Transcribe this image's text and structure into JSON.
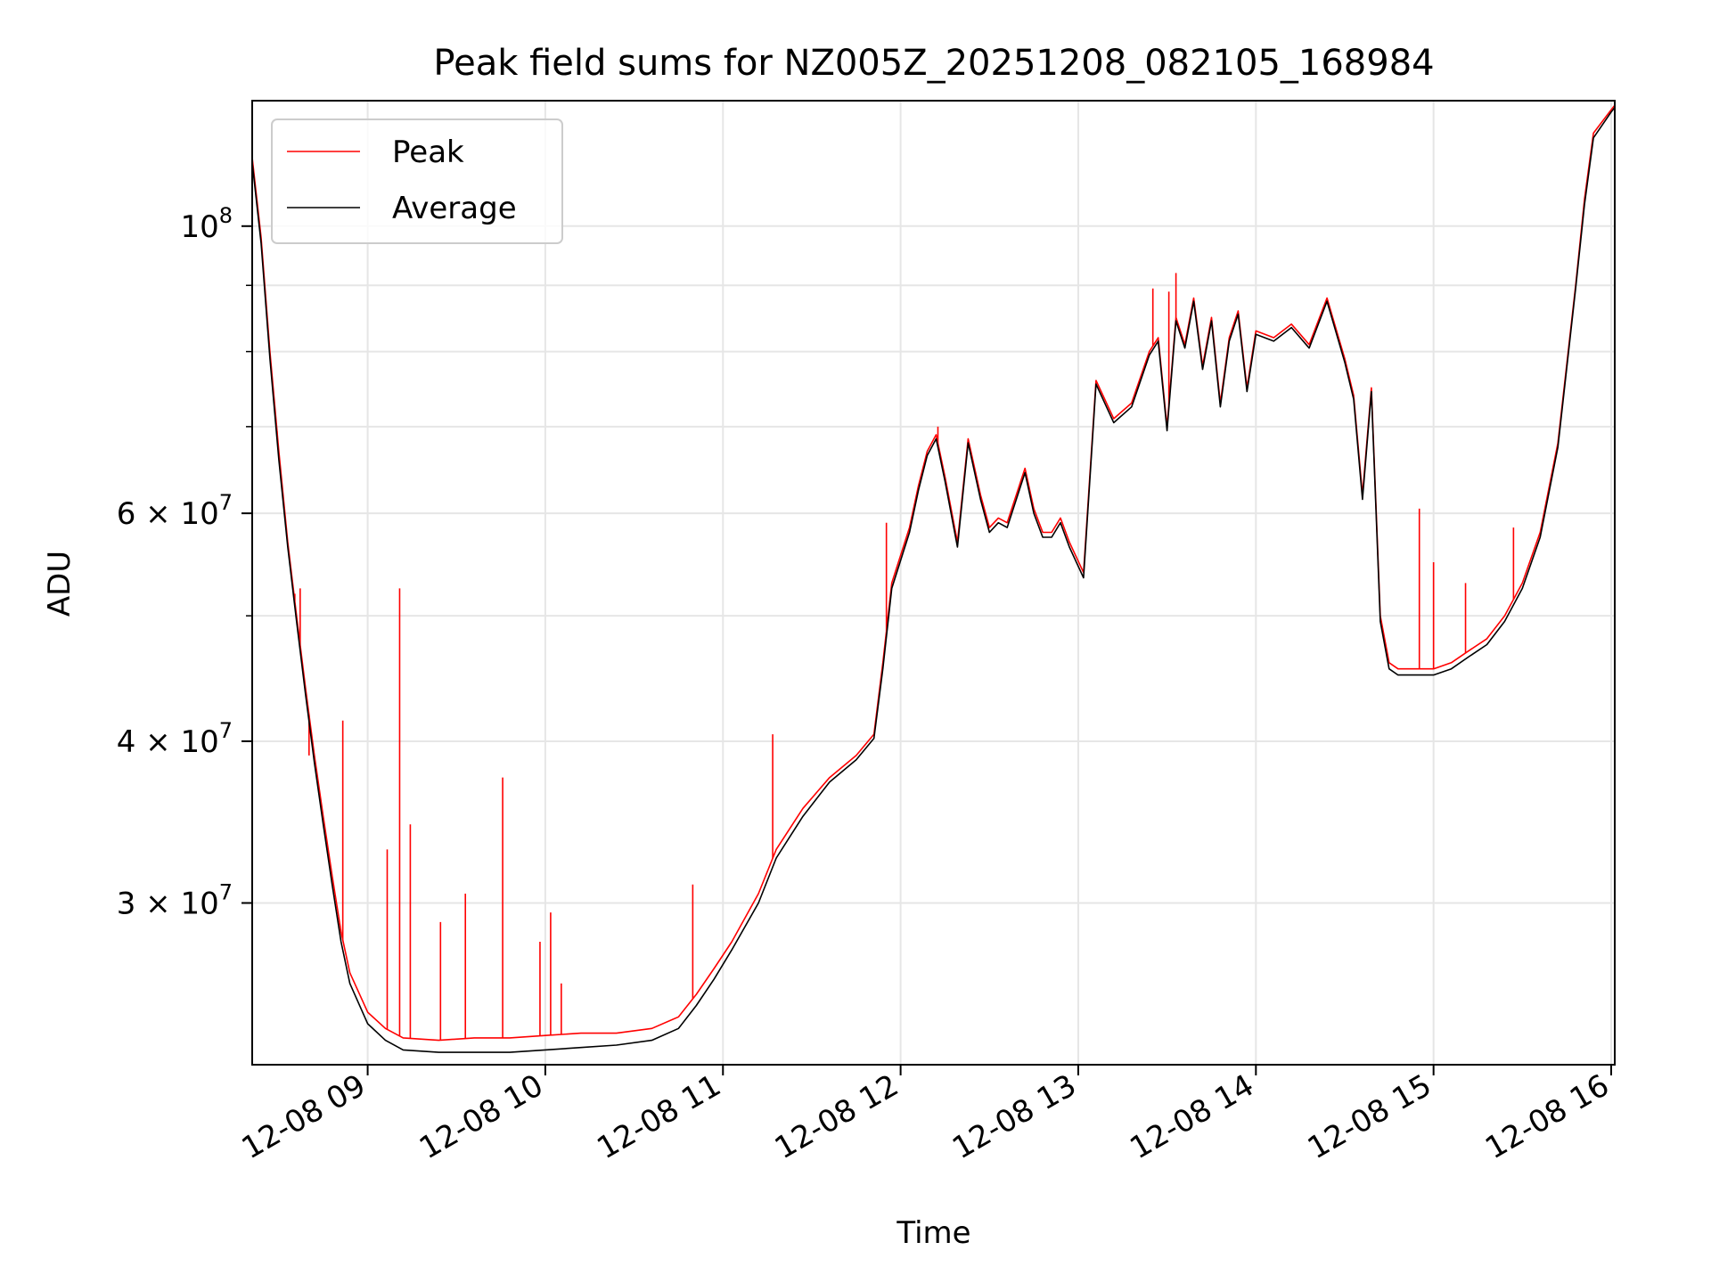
{
  "chart_data": {
    "type": "line",
    "title": "Peak field sums for NZ005Z_20251208_082105_168984",
    "xlabel": "Time",
    "ylabel": "ADU",
    "yscale": "log",
    "ylim": [
      22500000,
      125000000
    ],
    "xlim": [
      8.35,
      16.02
    ],
    "grid": true,
    "legend_position": "top-left",
    "x_ticks": [
      {
        "value": 9,
        "label": "12-08 09"
      },
      {
        "value": 10,
        "label": "12-08 10"
      },
      {
        "value": 11,
        "label": "12-08 11"
      },
      {
        "value": 12,
        "label": "12-08 12"
      },
      {
        "value": 13,
        "label": "12-08 13"
      },
      {
        "value": 14,
        "label": "12-08 14"
      },
      {
        "value": 15,
        "label": "12-08 15"
      },
      {
        "value": 16,
        "label": "12-08 16"
      }
    ],
    "y_ticks": [
      {
        "value": 30000000,
        "mantissa": "3",
        "exponent": "7"
      },
      {
        "value": 40000000,
        "mantissa": "4",
        "exponent": "7"
      },
      {
        "value": 60000000,
        "mantissa": "6",
        "exponent": "7"
      },
      {
        "value": 100000000,
        "mantissa": "",
        "exponent": "8"
      }
    ],
    "y_minor_ticks": [
      50000000,
      70000000,
      80000000,
      90000000
    ],
    "series": [
      {
        "name": "Peak",
        "color": "#ff0000",
        "x": [
          8.35,
          8.4,
          8.45,
          8.5,
          8.55,
          8.6,
          8.65,
          8.7,
          8.75,
          8.8,
          8.85,
          8.9,
          9.0,
          9.1,
          9.2,
          9.4,
          9.6,
          9.8,
          10.0,
          10.2,
          10.4,
          10.6,
          10.75,
          10.85,
          10.95,
          11.05,
          11.2,
          11.3,
          11.45,
          11.6,
          11.75,
          11.85,
          11.9,
          11.95,
          12.05,
          12.1,
          12.15,
          12.2,
          12.25,
          12.32,
          12.38,
          12.45,
          12.5,
          12.55,
          12.6,
          12.7,
          12.75,
          12.8,
          12.85,
          12.9,
          12.95,
          13.03,
          13.1,
          13.2,
          13.3,
          13.4,
          13.45,
          13.5,
          13.55,
          13.6,
          13.65,
          13.7,
          13.75,
          13.8,
          13.85,
          13.9,
          13.95,
          14.0,
          14.1,
          14.2,
          14.3,
          14.4,
          14.5,
          14.55,
          14.6,
          14.65,
          14.7,
          14.75,
          14.8,
          14.9,
          15.0,
          15.1,
          15.2,
          15.3,
          15.4,
          15.5,
          15.6,
          15.7,
          15.8,
          15.85,
          15.9,
          16.0,
          16.02
        ],
        "y": [
          113000000,
          98000000,
          80000000,
          67000000,
          57000000,
          50000000,
          44000000,
          39000000,
          35000000,
          31500000,
          28500000,
          26500000,
          24700000,
          24000000,
          23600000,
          23500000,
          23600000,
          23600000,
          23700000,
          23800000,
          23800000,
          24000000,
          24500000,
          25500000,
          26700000,
          28000000,
          30500000,
          33000000,
          35500000,
          37500000,
          39000000,
          40500000,
          46000000,
          53000000,
          58500000,
          63000000,
          67000000,
          69000000,
          64000000,
          57000000,
          68500000,
          62000000,
          58500000,
          59500000,
          59000000,
          65000000,
          60500000,
          58000000,
          58000000,
          59500000,
          57000000,
          54000000,
          76000000,
          71000000,
          73000000,
          80000000,
          82000000,
          70000000,
          85000000,
          81000000,
          88000000,
          78000000,
          85000000,
          73000000,
          82000000,
          86000000,
          75000000,
          83000000,
          82000000,
          84000000,
          81000000,
          88000000,
          79000000,
          74000000,
          62000000,
          75000000,
          50000000,
          46000000,
          45500000,
          45500000,
          45500000,
          46000000,
          47000000,
          48000000,
          50000000,
          53000000,
          58000000,
          68000000,
          90000000,
          105000000,
          118000000,
          123000000,
          124000000
        ],
        "spikes": [
          {
            "x": 8.49,
            "y": 69000000
          },
          {
            "x": 8.59,
            "y": 52000000
          },
          {
            "x": 8.62,
            "y": 52500000
          },
          {
            "x": 8.67,
            "y": 39000000
          },
          {
            "x": 8.86,
            "y": 41500000
          },
          {
            "x": 9.11,
            "y": 33000000
          },
          {
            "x": 9.18,
            "y": 52500000
          },
          {
            "x": 9.24,
            "y": 34500000
          },
          {
            "x": 9.41,
            "y": 29000000
          },
          {
            "x": 9.55,
            "y": 30500000
          },
          {
            "x": 9.76,
            "y": 37500000
          },
          {
            "x": 9.97,
            "y": 28000000
          },
          {
            "x": 10.03,
            "y": 29500000
          },
          {
            "x": 10.09,
            "y": 26000000
          },
          {
            "x": 10.83,
            "y": 31000000
          },
          {
            "x": 11.28,
            "y": 40500000
          },
          {
            "x": 11.92,
            "y": 59000000
          },
          {
            "x": 12.21,
            "y": 70000000
          },
          {
            "x": 13.42,
            "y": 89500000
          },
          {
            "x": 13.51,
            "y": 89000000
          },
          {
            "x": 13.55,
            "y": 92000000
          },
          {
            "x": 14.92,
            "y": 60500000
          },
          {
            "x": 15.0,
            "y": 55000000
          },
          {
            "x": 15.18,
            "y": 53000000
          },
          {
            "x": 15.45,
            "y": 58500000
          }
        ]
      },
      {
        "name": "Average",
        "color": "#000000",
        "x": [
          8.35,
          8.4,
          8.45,
          8.5,
          8.55,
          8.6,
          8.65,
          8.7,
          8.75,
          8.8,
          8.85,
          8.9,
          9.0,
          9.1,
          9.2,
          9.4,
          9.6,
          9.8,
          10.0,
          10.2,
          10.4,
          10.6,
          10.75,
          10.85,
          10.95,
          11.05,
          11.2,
          11.3,
          11.45,
          11.6,
          11.75,
          11.85,
          11.9,
          11.95,
          12.05,
          12.1,
          12.15,
          12.2,
          12.25,
          12.32,
          12.38,
          12.45,
          12.5,
          12.55,
          12.6,
          12.7,
          12.75,
          12.8,
          12.85,
          12.9,
          12.95,
          13.03,
          13.1,
          13.2,
          13.3,
          13.4,
          13.45,
          13.5,
          13.55,
          13.6,
          13.65,
          13.7,
          13.75,
          13.8,
          13.85,
          13.9,
          13.95,
          14.0,
          14.1,
          14.2,
          14.3,
          14.4,
          14.5,
          14.55,
          14.6,
          14.65,
          14.7,
          14.75,
          14.8,
          14.9,
          15.0,
          15.1,
          15.2,
          15.3,
          15.4,
          15.5,
          15.6,
          15.7,
          15.8,
          15.85,
          15.9,
          16.0,
          16.02
        ],
        "y": [
          112000000,
          97000000,
          79000000,
          66000000,
          56500000,
          49500000,
          43500000,
          38500000,
          34500000,
          31000000,
          28000000,
          26000000,
          24200000,
          23500000,
          23100000,
          23000000,
          23000000,
          23000000,
          23100000,
          23200000,
          23300000,
          23500000,
          24000000,
          25000000,
          26200000,
          27600000,
          30000000,
          32500000,
          35000000,
          37200000,
          38700000,
          40200000,
          45500000,
          52500000,
          58000000,
          62500000,
          66500000,
          68500000,
          63500000,
          56500000,
          68000000,
          61500000,
          58000000,
          59000000,
          58500000,
          64500000,
          60000000,
          57500000,
          57500000,
          59000000,
          56500000,
          53500000,
          75500000,
          70500000,
          72500000,
          79500000,
          81500000,
          69500000,
          84500000,
          80500000,
          87500000,
          77500000,
          84500000,
          72500000,
          81500000,
          85500000,
          74500000,
          82500000,
          81500000,
          83500000,
          80500000,
          87500000,
          78500000,
          73500000,
          61500000,
          74500000,
          49500000,
          45500000,
          45000000,
          45000000,
          45000000,
          45500000,
          46500000,
          47500000,
          49500000,
          52500000,
          57500000,
          67500000,
          89500000,
          104000000,
          117000000,
          122500000,
          123500000
        ]
      }
    ]
  }
}
